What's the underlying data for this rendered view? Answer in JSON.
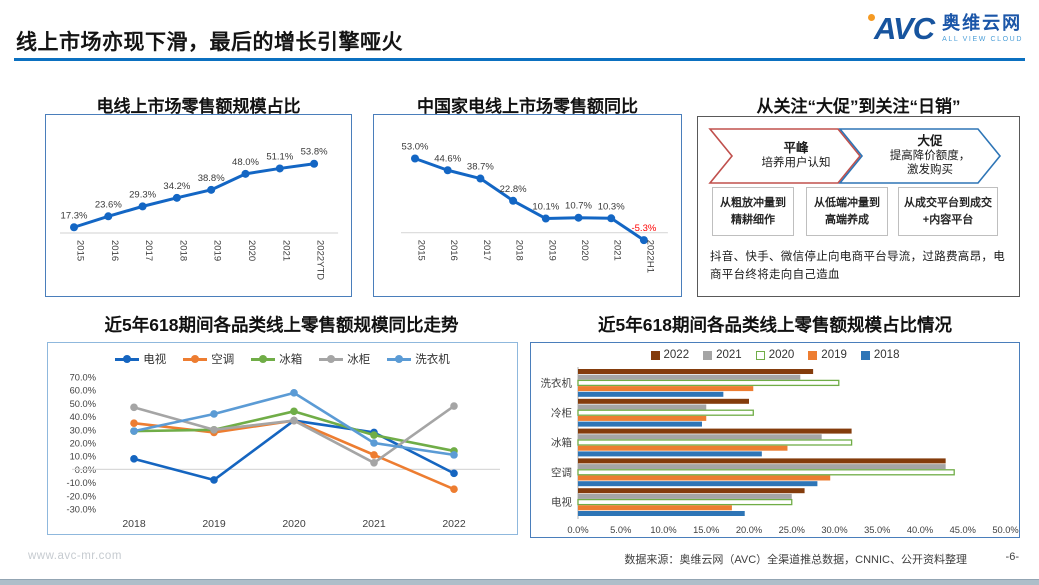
{
  "header": {
    "title": "线上市场亦现下滑，最后的增长引擎哑火",
    "logo": {
      "short": "AVC",
      "name_cn": "奥维云网",
      "tagline": "ALL VIEW CLOUD"
    }
  },
  "promo_panel": {
    "title": "从关注“大促”到关注“日销”",
    "arrows": [
      {
        "title": "平峰",
        "desc": "培养用户认知",
        "color": "#c0504d"
      },
      {
        "title": "大促",
        "desc": "提高降价额度，\n激发购买",
        "color": "#2e75b6"
      }
    ],
    "boxes": [
      "从粗放冲量到精耕细作",
      "从低端冲量到高端养成",
      "从成交平台到成交+内容平台"
    ],
    "note": "抖音、快手、微信停止向电商平台导流，过路费高昂，电商平台终将走向自己造血"
  },
  "footer": {
    "site": "www.avc-mr.com",
    "source": "数据来源：奥维云网（AVC）全渠道推总数据，CNNIC、公开资料整理",
    "page": "-6-"
  },
  "chart_data": [
    {
      "type": "line",
      "title": "电线上市场零售额规模占比",
      "categories": [
        "2015",
        "2016",
        "2017",
        "2018",
        "2019",
        "2020",
        "2021",
        "2022YTD"
      ],
      "values": [
        17.3,
        23.6,
        29.3,
        34.2,
        38.8,
        48.0,
        51.1,
        53.8
      ],
      "unit": "%",
      "color": "#1366c4",
      "label_color": "#3a3a3a",
      "negative_label_color": "#ff0000",
      "grid": "baseline-only",
      "legend_position": "none"
    },
    {
      "type": "line",
      "title": "中国家电线上市场零售额同比",
      "categories": [
        "2015",
        "2016",
        "2017",
        "2018",
        "2019",
        "2020",
        "2021",
        "2022H1"
      ],
      "values": [
        53.0,
        44.6,
        38.7,
        22.8,
        10.1,
        10.7,
        10.3,
        -5.3
      ],
      "unit": "%",
      "color": "#1366c4",
      "label_color": "#3a3a3a",
      "negative_label_color": "#ff0000",
      "grid": "zero-line-only",
      "legend_position": "none"
    },
    {
      "type": "line",
      "title": "近5年618期间各品类线上零售额规模同比走势",
      "categories": [
        "2018",
        "2019",
        "2020",
        "2021",
        "2022"
      ],
      "series": [
        {
          "name": "电视",
          "color": "#1565c0",
          "values": [
            8,
            -8,
            37,
            28,
            -3
          ]
        },
        {
          "name": "空调",
          "color": "#ed7d31",
          "values": [
            35,
            28,
            37,
            11,
            -15
          ]
        },
        {
          "name": "冰箱",
          "color": "#70ad47",
          "values": [
            29,
            30,
            44,
            26,
            14
          ]
        },
        {
          "name": "冰柜",
          "color": "#a5a5a5",
          "values": [
            47,
            30,
            37,
            5,
            48
          ]
        },
        {
          "name": "洗衣机",
          "color": "#5b9bd5",
          "values": [
            29,
            42,
            58,
            20,
            11
          ]
        }
      ],
      "unit": "%",
      "ylim": [
        -30,
        70
      ],
      "ytick_step": 10,
      "grid": "zero-line-only",
      "legend_position": "top"
    },
    {
      "type": "bar",
      "title": "近5年618期间各品类线上零售额规模占比情况",
      "orientation": "horizontal",
      "categories": [
        "洗衣机",
        "冷柜",
        "冰箱",
        "空调",
        "电视"
      ],
      "series": [
        {
          "name": "2022",
          "color": "#843c0c",
          "hollow": false,
          "values": [
            27.5,
            20.0,
            32.0,
            43.0,
            26.5
          ]
        },
        {
          "name": "2021",
          "color": "#a5a5a5",
          "hollow": false,
          "values": [
            26.0,
            15.0,
            28.5,
            43.0,
            25.0
          ]
        },
        {
          "name": "2020",
          "color": "#70ad47",
          "hollow": true,
          "values": [
            30.5,
            20.5,
            32.0,
            44.0,
            25.0
          ]
        },
        {
          "name": "2019",
          "color": "#ed7d31",
          "hollow": false,
          "values": [
            20.5,
            15.0,
            24.5,
            29.5,
            18.0
          ]
        },
        {
          "name": "2018",
          "color": "#2e75b6",
          "hollow": false,
          "values": [
            17.0,
            14.5,
            21.5,
            28.0,
            19.5
          ]
        }
      ],
      "unit": "%",
      "xlim": [
        0,
        50
      ],
      "xtick_step": 5,
      "legend_position": "top"
    }
  ]
}
